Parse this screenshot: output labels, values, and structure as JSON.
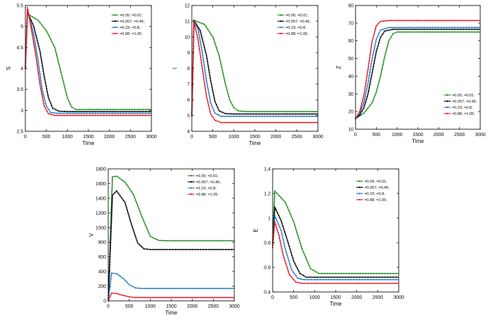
{
  "legend_labels": [
    "=0.05; =0.01;",
    "=0.057; =0.46;",
    "=0.23; =0.8;",
    "=0.88; =1.05;"
  ],
  "colors": [
    "#1a8a1a",
    "#000000",
    "#1f77c8",
    "#e8141e"
  ],
  "chart_data": [
    {
      "type": "line",
      "ylabel": "S",
      "xlabel": "Time",
      "legend_position": "top-right",
      "xlim": [
        0,
        3000
      ],
      "ylim": [
        2.5,
        5.5
      ],
      "xticks": [
        "0",
        "500",
        "1000",
        "1500",
        "2000",
        "2500",
        "3000"
      ],
      "yticks": [
        "2.5",
        "3",
        "3.5",
        "4",
        "4.5",
        "5",
        "5.5"
      ],
      "series": [
        {
          "name": "=0.05; =0.01;",
          "x": [
            0,
            50,
            300,
            500,
            700,
            900,
            1000,
            1100,
            1200,
            1500,
            3000
          ],
          "y": [
            4.0,
            5.3,
            5.15,
            4.9,
            4.5,
            3.7,
            3.3,
            3.08,
            3.02,
            3.02,
            3.02
          ]
        },
        {
          "name": "=0.057; =0.46;",
          "x": [
            0,
            50,
            200,
            350,
            450,
            550,
            650,
            800,
            1000,
            3000
          ],
          "y": [
            4.0,
            5.35,
            5.0,
            4.4,
            3.8,
            3.3,
            3.05,
            2.98,
            2.97,
            2.97
          ]
        },
        {
          "name": "=0.23; =0.8;",
          "x": [
            0,
            50,
            200,
            300,
            400,
            500,
            600,
            750,
            1000,
            3000
          ],
          "y": [
            4.0,
            5.4,
            4.8,
            4.2,
            3.5,
            3.1,
            2.95,
            2.93,
            2.93,
            2.93
          ]
        },
        {
          "name": "=0.88; =1.05;",
          "x": [
            0,
            50,
            150,
            250,
            350,
            450,
            550,
            700,
            1000,
            3000
          ],
          "y": [
            4.0,
            5.45,
            4.9,
            4.3,
            3.6,
            3.1,
            2.92,
            2.88,
            2.88,
            2.88
          ]
        }
      ]
    },
    {
      "type": "line",
      "ylabel": "I",
      "xlabel": "Time",
      "legend_position": "top-right",
      "xlim": [
        0,
        3000
      ],
      "ylim": [
        4,
        12
      ],
      "xticks": [
        "0",
        "500",
        "1000",
        "1500",
        "2000",
        "2500",
        "3000"
      ],
      "yticks": [
        "4",
        "5",
        "6",
        "7",
        "8",
        "9",
        "10",
        "11",
        "12"
      ],
      "series": [
        {
          "name": "=0.05; =0.01;",
          "x": [
            0,
            50,
            300,
            500,
            650,
            800,
            900,
            1000,
            1100,
            1300,
            3000
          ],
          "y": [
            5.0,
            11.05,
            10.8,
            10.0,
            8.8,
            7.0,
            6.0,
            5.5,
            5.3,
            5.25,
            5.25
          ]
        },
        {
          "name": "=0.057; =0.46;",
          "x": [
            0,
            50,
            200,
            350,
            450,
            550,
            650,
            800,
            1000,
            3000
          ],
          "y": [
            5.0,
            11.05,
            10.4,
            8.8,
            7.2,
            5.9,
            5.3,
            5.12,
            5.1,
            5.1
          ]
        },
        {
          "name": "=0.23; =0.8;",
          "x": [
            0,
            50,
            150,
            250,
            350,
            450,
            550,
            700,
            1000,
            3000
          ],
          "y": [
            5.0,
            11.0,
            10.5,
            9.0,
            7.2,
            5.8,
            5.15,
            4.95,
            4.95,
            4.95
          ]
        },
        {
          "name": "=0.88; =1.05;",
          "x": [
            0,
            50,
            150,
            250,
            350,
            450,
            550,
            700,
            1000,
            3000
          ],
          "y": [
            5.0,
            11.0,
            9.8,
            8.0,
            6.2,
            5.1,
            4.7,
            4.55,
            4.55,
            4.55
          ]
        }
      ]
    },
    {
      "type": "line",
      "ylabel": "Z",
      "xlabel": "Time",
      "legend_position": "bottom-right",
      "xlim": [
        0,
        3000
      ],
      "ylim": [
        10,
        80
      ],
      "xticks": [
        "0",
        "500",
        "1000",
        "1500",
        "2000",
        "2500",
        "3000"
      ],
      "yticks": [
        "10",
        "20",
        "30",
        "40",
        "50",
        "60",
        "70",
        "80"
      ],
      "series": [
        {
          "name": "=0.05; =0.01;",
          "x": [
            0,
            200,
            400,
            500,
            600,
            700,
            800,
            900,
            1000,
            1200,
            3000
          ],
          "y": [
            16,
            19,
            25,
            31,
            40,
            51,
            60,
            64,
            65,
            65,
            65
          ]
        },
        {
          "name": "=0.057; =0.46;",
          "x": [
            0,
            100,
            200,
            300,
            400,
            500,
            600,
            700,
            900,
            3000
          ],
          "y": [
            16,
            18,
            22,
            30,
            42,
            54,
            62,
            65.5,
            66.5,
            66.5
          ]
        },
        {
          "name": "=0.23; =0.8;",
          "x": [
            0,
            100,
            200,
            300,
            400,
            500,
            600,
            800,
            3000
          ],
          "y": [
            16,
            19,
            25,
            36,
            50,
            61,
            66,
            67.5,
            67.5
          ]
        },
        {
          "name": "=0.88; =1.05;",
          "x": [
            0,
            100,
            200,
            300,
            400,
            500,
            600,
            800,
            3000
          ],
          "y": [
            16,
            20,
            29,
            44,
            60,
            68.5,
            71,
            71.5,
            71.5
          ]
        }
      ]
    },
    {
      "type": "line",
      "ylabel": "V",
      "xlabel": "Time",
      "legend_position": "top-right",
      "xlim": [
        0,
        3000
      ],
      "ylim": [
        0,
        1800
      ],
      "xticks": [
        "0",
        "500",
        "1000",
        "1500",
        "2000",
        "2500",
        "3000"
      ],
      "yticks": [
        "0",
        "200",
        "400",
        "600",
        "800",
        "1000",
        "1200",
        "1400",
        "1600",
        "1800"
      ],
      "series": [
        {
          "name": "=0.05; =0.01;",
          "x": [
            0,
            100,
            200,
            400,
            600,
            800,
            1000,
            1200,
            1400,
            3000
          ],
          "y": [
            0,
            1690,
            1700,
            1620,
            1450,
            1150,
            880,
            825,
            820,
            820
          ]
        },
        {
          "name": "=0.057; =0.46;",
          "x": [
            0,
            100,
            200,
            400,
            550,
            700,
            850,
            1000,
            3000
          ],
          "y": [
            0,
            1440,
            1500,
            1340,
            1050,
            790,
            710,
            700,
            700
          ]
        },
        {
          "name": "=0.23; =0.8;",
          "x": [
            0,
            80,
            200,
            350,
            500,
            650,
            800,
            3000
          ],
          "y": [
            0,
            380,
            370,
            310,
            220,
            175,
            170,
            170
          ]
        },
        {
          "name": "=0.88; =1.05;",
          "x": [
            0,
            80,
            200,
            350,
            500,
            650,
            800,
            3000
          ],
          "y": [
            0,
            105,
            100,
            75,
            55,
            45,
            45,
            45
          ]
        }
      ]
    },
    {
      "type": "line",
      "ylabel": "E",
      "xlabel": "Time",
      "legend_position": "top-right",
      "xlim": [
        0,
        3000
      ],
      "ylim": [
        0.4,
        1.4
      ],
      "xticks": [
        "0",
        "500",
        "1000",
        "1500",
        "2000",
        "2500",
        "3000"
      ],
      "yticks": [
        "0.4",
        "0.6",
        "0.8",
        "1",
        "1.2",
        "1.4"
      ],
      "series": [
        {
          "name": "=0.05; =0.01;",
          "x": [
            0,
            50,
            300,
            500,
            700,
            900,
            1100,
            1300,
            3000
          ],
          "y": [
            0.82,
            1.22,
            1.13,
            0.97,
            0.75,
            0.59,
            0.55,
            0.55,
            0.55
          ]
        },
        {
          "name": "=0.057; =0.46;",
          "x": [
            0,
            50,
            200,
            350,
            500,
            650,
            800,
            1000,
            3000
          ],
          "y": [
            0.8,
            1.09,
            0.98,
            0.82,
            0.65,
            0.55,
            0.52,
            0.52,
            0.52
          ]
        },
        {
          "name": "=0.23; =0.8;",
          "x": [
            0,
            50,
            200,
            300,
            450,
            600,
            750,
            1000,
            3000
          ],
          "y": [
            0.78,
            1.02,
            0.9,
            0.75,
            0.58,
            0.51,
            0.5,
            0.5,
            0.5
          ]
        },
        {
          "name": "=0.88; =1.05;",
          "x": [
            0,
            50,
            150,
            250,
            400,
            550,
            700,
            1000,
            3000
          ],
          "y": [
            0.76,
            0.97,
            0.86,
            0.7,
            0.54,
            0.48,
            0.47,
            0.47,
            0.47
          ]
        }
      ]
    }
  ]
}
